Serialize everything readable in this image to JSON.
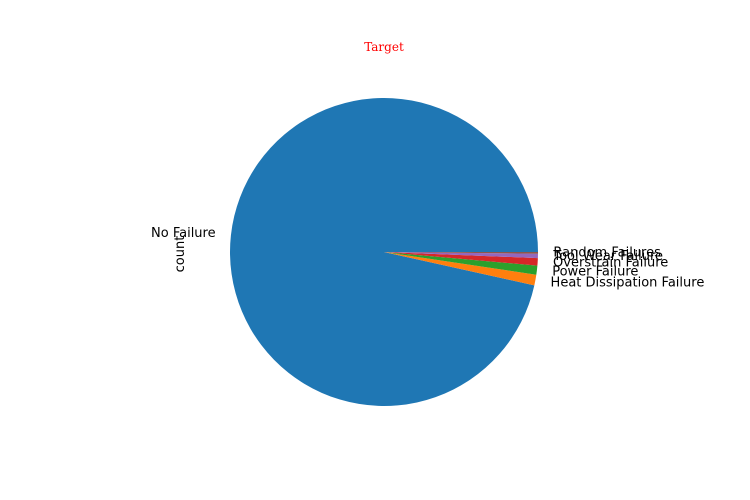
{
  "chart_data": {
    "type": "pie",
    "title": "Target",
    "title_color": "#ff0000",
    "ylabel": "count",
    "xlabel": "",
    "start_angle_deg": 0,
    "direction": "counterclockwise",
    "slices": [
      {
        "label": "No Failure",
        "value": 9652,
        "color": "#1f77b4"
      },
      {
        "label": "Heat Dissipation Failure",
        "value": 112,
        "color": "#ff7f0e"
      },
      {
        "label": "Power Failure",
        "value": 95,
        "color": "#2ca02c"
      },
      {
        "label": "Overstrain Failure",
        "value": 78,
        "color": "#d62728"
      },
      {
        "label": "Tool Wear Failure",
        "value": 45,
        "color": "#9467bd"
      },
      {
        "label": "Random Failures",
        "value": 18,
        "color": "#8c564b"
      }
    ]
  }
}
